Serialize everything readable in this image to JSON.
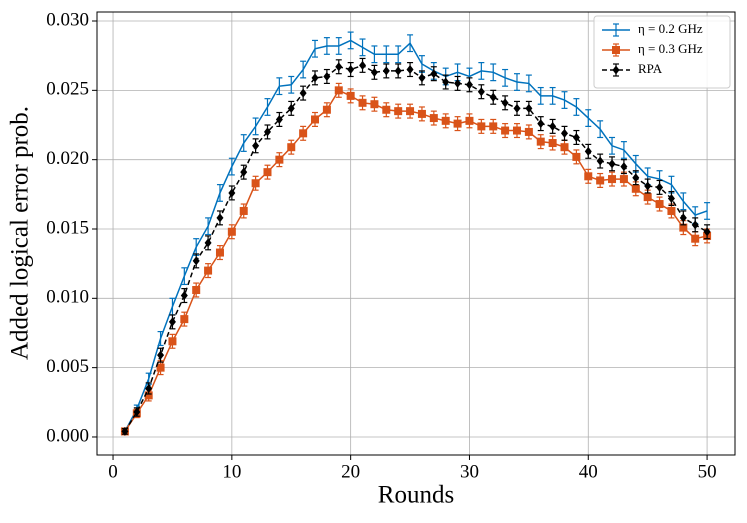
{
  "chart_data": {
    "type": "errorbar",
    "xlabel": "Rounds",
    "ylabel": "Added logical error prob.",
    "x": [
      1,
      2,
      3,
      4,
      5,
      6,
      7,
      8,
      9,
      10,
      11,
      12,
      13,
      14,
      15,
      16,
      17,
      18,
      19,
      20,
      21,
      22,
      23,
      24,
      25,
      26,
      27,
      28,
      29,
      30,
      31,
      32,
      33,
      34,
      35,
      36,
      37,
      38,
      39,
      40,
      41,
      42,
      43,
      44,
      45,
      46,
      47,
      48,
      49,
      50
    ],
    "xlim": [
      -1.35,
      52.35
    ],
    "xticks": [
      0,
      10,
      20,
      30,
      40,
      50
    ],
    "ylim": [
      -0.0013,
      0.03065
    ],
    "yticks": [
      {
        "value": 0,
        "label": "0.000"
      },
      0.005,
      {
        "value": 0.01,
        "label": "0.010"
      },
      0.015,
      {
        "value": 0.02,
        "label": "0.020"
      },
      0.025,
      {
        "value": 0.03,
        "label": "0.030"
      }
    ],
    "grid": true,
    "legend": "upper right",
    "series": [
      {
        "name": "η = 0.2 GHz",
        "color": "#0072bd",
        "marker": "none",
        "dashed": false,
        "values": [
          0.0004,
          0.002,
          0.0042,
          0.0071,
          0.0094,
          0.0116,
          0.0137,
          0.0152,
          0.0176,
          0.0195,
          0.0212,
          0.0224,
          0.0238,
          0.0253,
          0.0254,
          0.0265,
          0.028,
          0.0282,
          0.0282,
          0.0286,
          0.0281,
          0.0276,
          0.0276,
          0.0276,
          0.0284,
          0.0269,
          0.0264,
          0.026,
          0.0263,
          0.026,
          0.0264,
          0.0263,
          0.0259,
          0.0256,
          0.0255,
          0.0246,
          0.0246,
          0.0243,
          0.0238,
          0.023,
          0.0222,
          0.021,
          0.0207,
          0.0197,
          0.0188,
          0.0186,
          0.0182,
          0.017,
          0.016,
          0.0163
        ],
        "errors": [
          0.0002,
          0.0003,
          0.0004,
          0.0005,
          0.0006,
          0.0006,
          0.0006,
          0.0006,
          0.0006,
          0.0006,
          0.0006,
          0.0006,
          0.0006,
          0.0006,
          0.0006,
          0.0006,
          0.0006,
          0.0006,
          0.0006,
          0.0006,
          0.0006,
          0.0006,
          0.0006,
          0.0006,
          0.0006,
          0.0006,
          0.0006,
          0.0006,
          0.0006,
          0.0006,
          0.0006,
          0.0006,
          0.0006,
          0.0006,
          0.0006,
          0.0006,
          0.0006,
          0.0006,
          0.0006,
          0.0006,
          0.0006,
          0.0006,
          0.0006,
          0.0006,
          0.0006,
          0.0006,
          0.0006,
          0.0006,
          0.0006,
          0.0006
        ]
      },
      {
        "name": "η = 0.3 GHz",
        "color": "#d95319",
        "marker": "square",
        "dashed": false,
        "values": [
          0.0004,
          0.0017,
          0.003,
          0.005,
          0.0069,
          0.0085,
          0.0106,
          0.012,
          0.0133,
          0.0148,
          0.0163,
          0.0183,
          0.0191,
          0.02,
          0.0209,
          0.0219,
          0.0229,
          0.0236,
          0.025,
          0.0246,
          0.0241,
          0.024,
          0.0236,
          0.0235,
          0.0235,
          0.0233,
          0.023,
          0.0228,
          0.0226,
          0.0228,
          0.0224,
          0.0224,
          0.0221,
          0.0221,
          0.022,
          0.0213,
          0.0212,
          0.0209,
          0.0202,
          0.0188,
          0.0185,
          0.0186,
          0.0186,
          0.0179,
          0.0173,
          0.0168,
          0.0163,
          0.0151,
          0.0143,
          0.0145
        ],
        "errors": [
          0.0002,
          0.0003,
          0.0004,
          0.0005,
          0.0005,
          0.0005,
          0.0005,
          0.0005,
          0.0005,
          0.0005,
          0.0005,
          0.0005,
          0.0005,
          0.0005,
          0.0005,
          0.0005,
          0.0005,
          0.0005,
          0.0005,
          0.0005,
          0.0005,
          0.0005,
          0.0005,
          0.0005,
          0.0005,
          0.0005,
          0.0005,
          0.0005,
          0.0005,
          0.0005,
          0.0005,
          0.0005,
          0.0005,
          0.0005,
          0.0005,
          0.0005,
          0.0005,
          0.0005,
          0.0005,
          0.0005,
          0.0005,
          0.0005,
          0.0005,
          0.0005,
          0.0005,
          0.0005,
          0.0005,
          0.0005,
          0.0005,
          0.0005
        ]
      },
      {
        "name": "RPA",
        "color": "#000000",
        "marker": "diamond",
        "dashed": true,
        "values": [
          0.0004,
          0.0018,
          0.0035,
          0.0059,
          0.0083,
          0.0102,
          0.0127,
          0.014,
          0.0158,
          0.0176,
          0.0191,
          0.021,
          0.022,
          0.0229,
          0.0237,
          0.0248,
          0.0259,
          0.026,
          0.0267,
          0.0265,
          0.0268,
          0.0263,
          0.0264,
          0.0264,
          0.0265,
          0.0259,
          0.0262,
          0.0256,
          0.0255,
          0.0254,
          0.0249,
          0.0245,
          0.0241,
          0.0237,
          0.0237,
          0.0226,
          0.0224,
          0.0219,
          0.0216,
          0.0206,
          0.0199,
          0.0197,
          0.0195,
          0.0187,
          0.0181,
          0.018,
          0.0172,
          0.0158,
          0.0153,
          0.0148
        ],
        "errors": [
          0.0002,
          0.0003,
          0.0004,
          0.0005,
          0.0005,
          0.0005,
          0.0005,
          0.0005,
          0.0005,
          0.0005,
          0.0005,
          0.0005,
          0.0005,
          0.0005,
          0.0005,
          0.0005,
          0.0005,
          0.0005,
          0.0005,
          0.0005,
          0.0005,
          0.0005,
          0.0005,
          0.0005,
          0.0005,
          0.0005,
          0.0005,
          0.0005,
          0.0005,
          0.0005,
          0.0005,
          0.0005,
          0.0005,
          0.0005,
          0.0005,
          0.0005,
          0.0005,
          0.0005,
          0.0005,
          0.0005,
          0.0005,
          0.0005,
          0.0005,
          0.0005,
          0.0005,
          0.0005,
          0.0005,
          0.0005,
          0.0005,
          0.0005
        ]
      }
    ]
  }
}
